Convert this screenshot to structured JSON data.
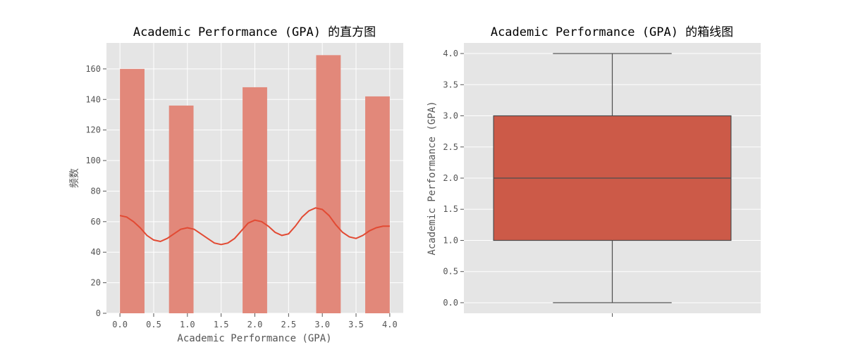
{
  "chart_data": [
    {
      "type": "bar",
      "subtype": "histogram-with-kde",
      "title": "Academic Performance (GPA) 的直方图",
      "xlabel": "Academic Performance (GPA)",
      "ylabel": "频数",
      "xlim": [
        -0.2,
        4.2
      ],
      "ylim": [
        0,
        177
      ],
      "xticks": [
        0.0,
        0.5,
        1.0,
        1.5,
        2.0,
        2.5,
        3.0,
        3.5,
        4.0
      ],
      "xtick_labels": [
        "0.0",
        "0.5",
        "1.0",
        "1.5",
        "2.0",
        "2.5",
        "3.0",
        "3.5",
        "4.0"
      ],
      "yticks": [
        0,
        20,
        40,
        60,
        80,
        100,
        120,
        140,
        160
      ],
      "ytick_labels": [
        "0",
        "20",
        "40",
        "60",
        "80",
        "100",
        "120",
        "140",
        "160"
      ],
      "bins": [
        {
          "x0": 0.0,
          "x1": 0.364,
          "count": 160
        },
        {
          "x0": 0.727,
          "x1": 1.091,
          "count": 136
        },
        {
          "x0": 1.818,
          "x1": 2.182,
          "count": 148
        },
        {
          "x0": 2.909,
          "x1": 3.273,
          "count": 169
        },
        {
          "x0": 3.636,
          "x1": 4.0,
          "count": 142
        }
      ],
      "kde": {
        "x": [
          0.0,
          0.1,
          0.2,
          0.3,
          0.4,
          0.5,
          0.6,
          0.7,
          0.8,
          0.9,
          1.0,
          1.1,
          1.2,
          1.3,
          1.4,
          1.5,
          1.6,
          1.7,
          1.8,
          1.9,
          2.0,
          2.1,
          2.2,
          2.3,
          2.4,
          2.5,
          2.6,
          2.7,
          2.8,
          2.9,
          3.0,
          3.1,
          3.2,
          3.3,
          3.4,
          3.5,
          3.6,
          3.7,
          3.8,
          3.9,
          4.0
        ],
        "y": [
          64,
          63,
          60,
          56,
          51,
          48,
          47,
          49,
          52,
          55,
          56,
          55,
          52,
          49,
          46,
          45,
          46,
          49,
          54,
          59,
          61,
          60,
          57,
          53,
          51,
          52,
          57,
          63,
          67,
          69,
          68,
          64,
          58,
          53,
          50,
          49,
          51,
          54,
          56,
          57,
          57
        ]
      },
      "colors": {
        "bar": "#e2887a",
        "line": "#e24a33",
        "background": "#e5e5e5"
      }
    },
    {
      "type": "box",
      "title": "Academic Performance (GPA) 的箱线图",
      "xlabel": "",
      "ylabel": "Academic Performance (GPA)",
      "ylim": [
        -0.17,
        4.17
      ],
      "yticks": [
        0.0,
        0.5,
        1.0,
        1.5,
        2.0,
        2.5,
        3.0,
        3.5,
        4.0
      ],
      "ytick_labels": [
        "0.0",
        "0.5",
        "1.0",
        "1.5",
        "2.0",
        "2.5",
        "3.0",
        "3.5",
        "4.0"
      ],
      "box": {
        "whisker_low": 0.0,
        "q1": 1.0,
        "median": 2.0,
        "q3": 3.0,
        "whisker_high": 4.0
      },
      "colors": {
        "box": "#cc5a48",
        "line": "#4d4d4d",
        "background": "#e5e5e5"
      }
    }
  ]
}
